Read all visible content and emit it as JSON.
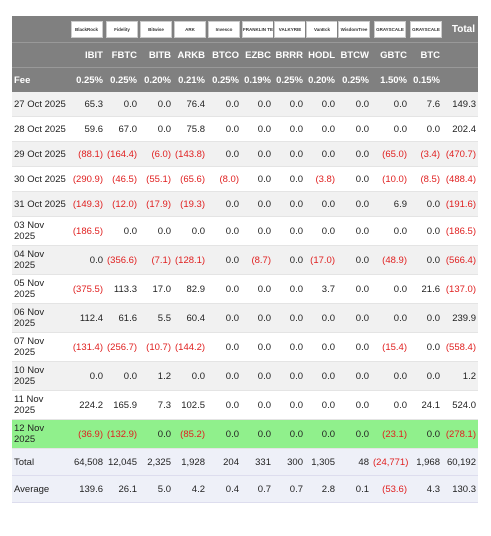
{
  "header": {
    "logos": [
      "BlackRock",
      "Fidelity",
      "Bitwise",
      "ARK",
      "Invesco",
      "FRANKLIN TEMPLETON",
      "VALKYRIE",
      "VanEck",
      "WisdomTree",
      "GRAYSCALE",
      "GRAYSCALE"
    ],
    "total_label": "Total",
    "tickers": [
      "IBIT",
      "FBTC",
      "BITB",
      "ARKB",
      "BTCO",
      "EZBC",
      "BRRR",
      "HODL",
      "BTCW",
      "GBTC",
      "BTC"
    ],
    "fee_label": "Fee",
    "fees": [
      "0.25%",
      "0.25%",
      "0.20%",
      "0.21%",
      "0.25%",
      "0.19%",
      "0.25%",
      "0.20%",
      "0.25%",
      "1.50%",
      "0.15%"
    ]
  },
  "rows": [
    {
      "date": "27 Oct 2025",
      "values": [
        "65.3",
        "0.0",
        "0.0",
        "76.4",
        "0.0",
        "0.0",
        "0.0",
        "0.0",
        "0.0",
        "0.0",
        "7.6",
        "149.3"
      ]
    },
    {
      "date": "28 Oct 2025",
      "values": [
        "59.6",
        "67.0",
        "0.0",
        "75.8",
        "0.0",
        "0.0",
        "0.0",
        "0.0",
        "0.0",
        "0.0",
        "0.0",
        "202.4"
      ]
    },
    {
      "date": "29 Oct 2025",
      "values": [
        "(88.1)",
        "(164.4)",
        "(6.0)",
        "(143.8)",
        "0.0",
        "0.0",
        "0.0",
        "0.0",
        "0.0",
        "(65.0)",
        "(3.4)",
        "(470.7)"
      ]
    },
    {
      "date": "30 Oct 2025",
      "values": [
        "(290.9)",
        "(46.5)",
        "(55.1)",
        "(65.6)",
        "(8.0)",
        "0.0",
        "0.0",
        "(3.8)",
        "0.0",
        "(10.0)",
        "(8.5)",
        "(488.4)"
      ]
    },
    {
      "date": "31 Oct 2025",
      "values": [
        "(149.3)",
        "(12.0)",
        "(17.9)",
        "(19.3)",
        "0.0",
        "0.0",
        "0.0",
        "0.0",
        "0.0",
        "6.9",
        "0.0",
        "(191.6)"
      ]
    },
    {
      "date": "03 Nov 2025",
      "values": [
        "(186.5)",
        "0.0",
        "0.0",
        "0.0",
        "0.0",
        "0.0",
        "0.0",
        "0.0",
        "0.0",
        "0.0",
        "0.0",
        "(186.5)"
      ]
    },
    {
      "date": "04 Nov 2025",
      "values": [
        "0.0",
        "(356.6)",
        "(7.1)",
        "(128.1)",
        "0.0",
        "(8.7)",
        "0.0",
        "(17.0)",
        "0.0",
        "(48.9)",
        "0.0",
        "(566.4)"
      ]
    },
    {
      "date": "05 Nov 2025",
      "values": [
        "(375.5)",
        "113.3",
        "17.0",
        "82.9",
        "0.0",
        "0.0",
        "0.0",
        "3.7",
        "0.0",
        "0.0",
        "21.6",
        "(137.0)"
      ]
    },
    {
      "date": "06 Nov 2025",
      "values": [
        "112.4",
        "61.6",
        "5.5",
        "60.4",
        "0.0",
        "0.0",
        "0.0",
        "0.0",
        "0.0",
        "0.0",
        "0.0",
        "239.9"
      ]
    },
    {
      "date": "07 Nov 2025",
      "values": [
        "(131.4)",
        "(256.7)",
        "(10.7)",
        "(144.2)",
        "0.0",
        "0.0",
        "0.0",
        "0.0",
        "0.0",
        "(15.4)",
        "0.0",
        "(558.4)"
      ]
    },
    {
      "date": "10 Nov 2025",
      "values": [
        "0.0",
        "0.0",
        "1.2",
        "0.0",
        "0.0",
        "0.0",
        "0.0",
        "0.0",
        "0.0",
        "0.0",
        "0.0",
        "1.2"
      ]
    },
    {
      "date": "11 Nov 2025",
      "values": [
        "224.2",
        "165.9",
        "7.3",
        "102.5",
        "0.0",
        "0.0",
        "0.0",
        "0.0",
        "0.0",
        "0.0",
        "24.1",
        "524.0"
      ]
    },
    {
      "date": "12 Nov 2025",
      "highlight": "#90f08c",
      "values": [
        "(36.9)",
        "(132.9)",
        "0.0",
        "(85.2)",
        "0.0",
        "0.0",
        "0.0",
        "0.0",
        "0.0",
        "(23.1)",
        "0.0",
        "(278.1)"
      ]
    }
  ],
  "footer": [
    {
      "label": "Total",
      "values": [
        "64,508",
        "12,045",
        "2,325",
        "1,928",
        "204",
        "331",
        "300",
        "1,305",
        "48",
        "(24,771)",
        "1,968",
        "60,192"
      ]
    },
    {
      "label": "Average",
      "values": [
        "139.6",
        "26.1",
        "5.0",
        "4.2",
        "0.4",
        "0.7",
        "0.7",
        "2.8",
        "0.1",
        "(53.6)",
        "4.3",
        "130.3"
      ]
    }
  ]
}
